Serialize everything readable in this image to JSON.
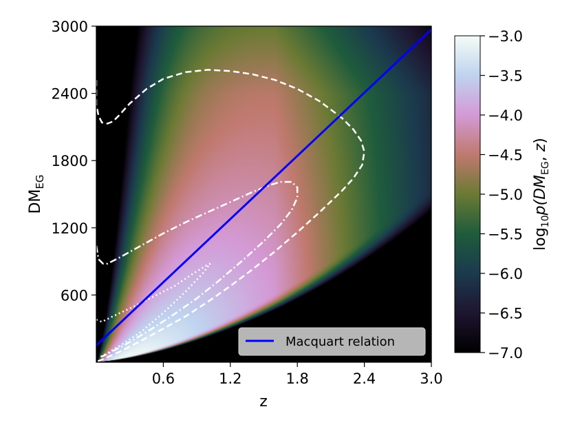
{
  "chart_data": {
    "type": "heatmap",
    "title": "",
    "xlabel": "z",
    "ylabel_main": "DM",
    "ylabel_sub": "EG",
    "xlim": [
      0.0,
      3.0
    ],
    "ylim": [
      0,
      3000
    ],
    "x_ticks": [
      {
        "value": 0.6,
        "label": "0.6"
      },
      {
        "value": 1.2,
        "label": "1.2"
      },
      {
        "value": 1.8,
        "label": "1.8"
      },
      {
        "value": 2.4,
        "label": "2.4"
      },
      {
        "value": 3.0,
        "label": "3.0"
      }
    ],
    "y_ticks": [
      {
        "value": 600,
        "label": "600"
      },
      {
        "value": 1200,
        "label": "1200"
      },
      {
        "value": 1800,
        "label": "1800"
      },
      {
        "value": 2400,
        "label": "2400"
      },
      {
        "value": 3000,
        "label": "3000"
      }
    ],
    "colorbar": {
      "label_parts": [
        "log",
        "10",
        "p(DM",
        "EG",
        ", ",
        "z",
        ")"
      ],
      "range": [
        -7.0,
        -3.0
      ],
      "ticks": [
        {
          "value": -3.0,
          "label": "−3.0"
        },
        {
          "value": -3.5,
          "label": "−3.5"
        },
        {
          "value": -4.0,
          "label": "−4.0"
        },
        {
          "value": -4.5,
          "label": "−4.5"
        },
        {
          "value": -5.0,
          "label": "−5.0"
        },
        {
          "value": -5.5,
          "label": "−5.5"
        },
        {
          "value": -6.0,
          "label": "−6.0"
        },
        {
          "value": -6.5,
          "label": "−6.5"
        },
        {
          "value": -7.0,
          "label": "−7.0"
        }
      ],
      "colormap_stops": [
        {
          "value": -7.0,
          "color": "#000000"
        },
        {
          "value": -6.5,
          "color": "#1e1530"
        },
        {
          "value": -6.0,
          "color": "#1b3a4e"
        },
        {
          "value": -5.5,
          "color": "#1e5c3c"
        },
        {
          "value": -5.0,
          "color": "#6b7a34"
        },
        {
          "value": -4.5,
          "color": "#c0796e"
        },
        {
          "value": -4.0,
          "color": "#d49ad6"
        },
        {
          "value": -3.5,
          "color": "#bfd3ef"
        },
        {
          "value": -3.0,
          "color": "#f4fcf6"
        }
      ]
    },
    "series": [
      {
        "name": "Macquart relation",
        "style": "solid",
        "color": "#0000ff",
        "x": [
          0.0,
          3.0
        ],
        "y": [
          150,
          2970
        ]
      }
    ],
    "contours": [
      {
        "style": "dashed",
        "color": "#ffffff",
        "x": [
          0.0,
          0.0,
          0.02,
          0.05,
          0.1,
          0.15,
          0.2,
          0.3,
          0.45,
          0.6,
          0.8,
          1.0,
          1.2,
          1.4,
          1.6,
          1.8,
          2.0,
          2.2,
          2.3,
          2.37,
          2.4,
          2.38,
          2.3,
          2.2,
          2.0,
          1.8,
          1.6,
          1.4,
          1.2,
          1.0,
          0.8,
          0.6,
          0.4,
          0.2,
          0.1,
          0.03,
          0.0
        ],
        "y": [
          2520,
          2300,
          2200,
          2140,
          2130,
          2150,
          2200,
          2310,
          2440,
          2530,
          2590,
          2610,
          2600,
          2570,
          2520,
          2440,
          2330,
          2180,
          2080,
          1980,
          1880,
          1760,
          1640,
          1530,
          1340,
          1160,
          990,
          830,
          680,
          540,
          410,
          300,
          190,
          90,
          45,
          15,
          5
        ]
      },
      {
        "style": "dashdot",
        "color": "#ffffff",
        "x": [
          0.0,
          0.02,
          0.06,
          0.1,
          0.2,
          0.4,
          0.6,
          0.8,
          1.0,
          1.2,
          1.4,
          1.55,
          1.65,
          1.75,
          1.8,
          1.8,
          1.75,
          1.65,
          1.5,
          1.3,
          1.1,
          0.9,
          0.7,
          0.5,
          0.3,
          0.15,
          0.05
        ],
        "y": [
          1040,
          920,
          880,
          880,
          930,
          1040,
          1150,
          1250,
          1340,
          1430,
          1520,
          1580,
          1610,
          1610,
          1560,
          1470,
          1360,
          1230,
          1080,
          900,
          730,
          570,
          430,
          300,
          180,
          100,
          50
        ]
      },
      {
        "style": "dotted",
        "color": "#ffffff",
        "x": [
          0.0,
          0.05,
          0.15,
          0.3,
          0.5,
          0.7,
          0.85,
          0.98,
          1.02,
          0.95,
          0.8,
          0.6,
          0.4,
          0.2,
          0.08,
          0.02
        ],
        "y": [
          380,
          360,
          410,
          480,
          580,
          680,
          780,
          860,
          880,
          790,
          630,
          440,
          270,
          140,
          70,
          40
        ]
      }
    ],
    "density_model": {
      "description": "log10 probability density; peak near z~0.3, DM~300; high-z side decays to black below the lower edge",
      "peak_z": 0.3,
      "peak_dm": 300
    },
    "legend": {
      "placement": "lower-right",
      "entries": [
        {
          "label": "Macquart relation",
          "color": "#0000ff"
        }
      ]
    }
  }
}
